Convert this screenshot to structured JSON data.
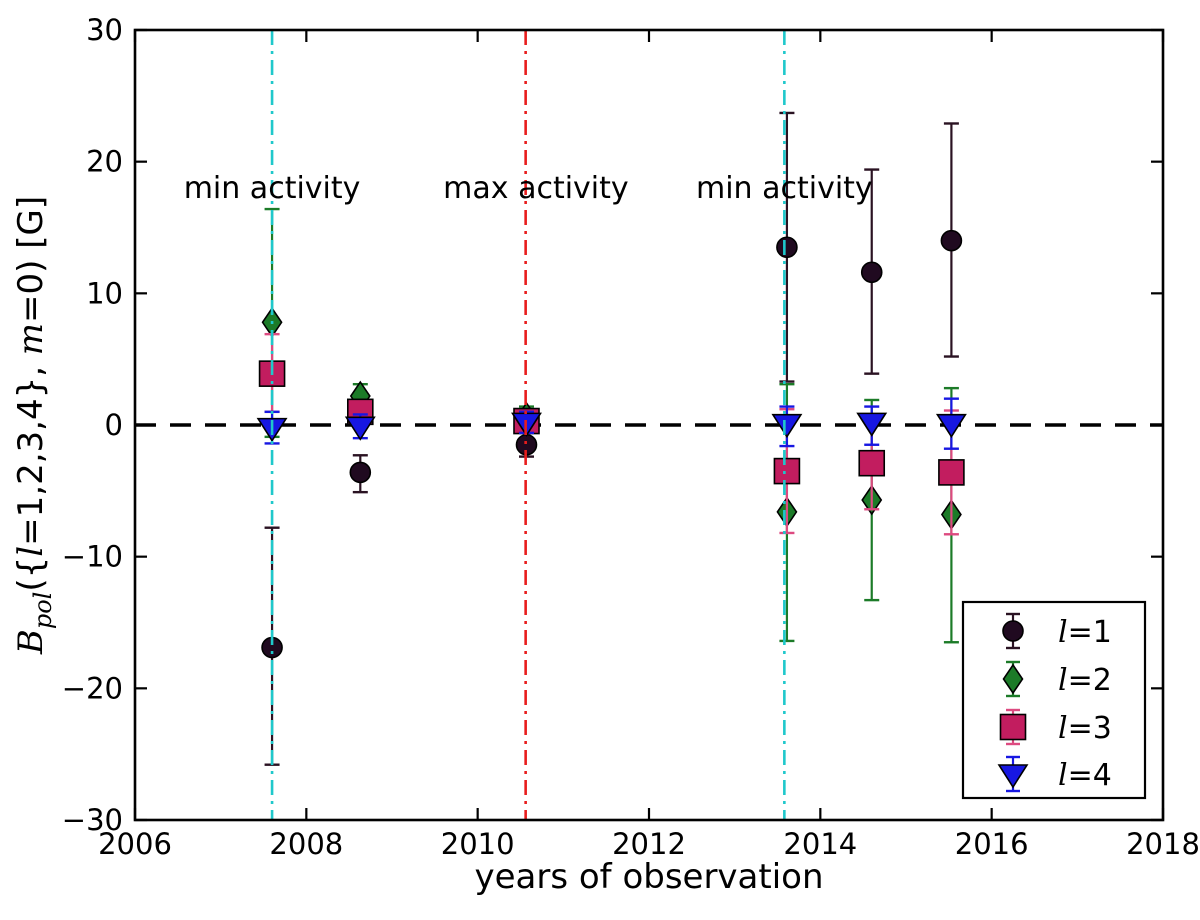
{
  "chart_data": {
    "type": "scatter",
    "title": "",
    "xlabel": "years of observation",
    "ylabel_plain": "B_pol({l=1,2,3,4}, m=0) [G]",
    "ylabel_segments": [
      {
        "t": "B",
        "s": "it"
      },
      {
        "t": "pol",
        "s": "sub"
      },
      {
        "t": "({",
        "s": "r"
      },
      {
        "t": "l",
        "s": "it"
      },
      {
        "t": "=1,2,3,4},  ",
        "s": "r"
      },
      {
        "t": "m",
        "s": "it"
      },
      {
        "t": "=0) [G]",
        "s": "r"
      }
    ],
    "xlim": [
      2006,
      2018
    ],
    "ylim": [
      -30,
      30
    ],
    "xticks": [
      2006,
      2008,
      2010,
      2012,
      2014,
      2016,
      2018
    ],
    "yticks": [
      -30,
      -20,
      -10,
      0,
      10,
      20,
      30
    ],
    "grid": false,
    "legend_position": "lower right",
    "hline": {
      "y": 0,
      "style": "dashed",
      "color": "#000000"
    },
    "vlines": [
      {
        "x": 2007.6,
        "kind": "min activity",
        "color": "#1fc8cb",
        "style": "dash-dot"
      },
      {
        "x": 2010.56,
        "kind": "max activity",
        "color": "#e81d1d",
        "style": "dash-dot"
      },
      {
        "x": 2013.58,
        "kind": "min activity",
        "color": "#1fc8cb",
        "style": "dash-dot"
      }
    ],
    "annotations": [
      {
        "text": "min activity",
        "x": 2007.6,
        "y": 18.0
      },
      {
        "text": "max activity",
        "x": 2010.68,
        "y": 18.0
      },
      {
        "text": "min activity",
        "x": 2013.58,
        "y": 18.0
      }
    ],
    "legend": {
      "entries": [
        {
          "math": "l",
          "rest": "=1",
          "series": "l1"
        },
        {
          "math": "l",
          "rest": "=2",
          "series": "l2"
        },
        {
          "math": "l",
          "rest": "=3",
          "series": "l3"
        },
        {
          "math": "l",
          "rest": "=4",
          "series": "l4"
        }
      ]
    },
    "series": [
      {
        "id": "l1",
        "name": "l=1",
        "marker": "circle",
        "color": "#200a20",
        "err_color": "#2a1222",
        "points": [
          {
            "x": 2007.6,
            "y": -16.9,
            "lo": -25.8,
            "hi": -7.8
          },
          {
            "x": 2008.63,
            "y": -3.6,
            "lo": -5.1,
            "hi": -2.3
          },
          {
            "x": 2010.57,
            "y": -1.5,
            "lo": -2.4,
            "hi": -0.5
          },
          {
            "x": 2013.61,
            "y": 13.5,
            "lo": 3.3,
            "hi": 23.7
          },
          {
            "x": 2014.6,
            "y": 11.6,
            "lo": 3.9,
            "hi": 19.4
          },
          {
            "x": 2015.53,
            "y": 14.0,
            "lo": 5.2,
            "hi": 22.9
          }
        ]
      },
      {
        "id": "l2",
        "name": "l=2",
        "marker": "diamond",
        "color": "#1c7b28",
        "err_color": "#1c7b28",
        "points": [
          {
            "x": 2007.6,
            "y": 7.8,
            "lo": -0.9,
            "hi": 16.4
          },
          {
            "x": 2008.63,
            "y": 2.2,
            "lo": 1.1,
            "hi": 3.1
          },
          {
            "x": 2010.57,
            "y": 0.6,
            "lo": -0.4,
            "hi": 1.4
          },
          {
            "x": 2013.61,
            "y": -6.6,
            "lo": -16.4,
            "hi": 3.1
          },
          {
            "x": 2014.6,
            "y": -5.7,
            "lo": -13.3,
            "hi": 1.9
          },
          {
            "x": 2015.53,
            "y": -6.8,
            "lo": -16.5,
            "hi": 2.8
          }
        ]
      },
      {
        "id": "l3",
        "name": "l=3",
        "marker": "square",
        "color": "#c21d5f",
        "err_color": "#dd4a80",
        "points": [
          {
            "x": 2007.6,
            "y": 3.9,
            "lo": 1.0,
            "hi": 6.9
          },
          {
            "x": 2008.63,
            "y": 1.0,
            "lo": 0.2,
            "hi": 1.9
          },
          {
            "x": 2010.57,
            "y": 0.3,
            "lo": -0.5,
            "hi": 1.2
          },
          {
            "x": 2013.61,
            "y": -3.5,
            "lo": -8.2,
            "hi": 1.2
          },
          {
            "x": 2014.6,
            "y": -2.9,
            "lo": -6.4,
            "hi": 0.6
          },
          {
            "x": 2015.53,
            "y": -3.6,
            "lo": -8.3,
            "hi": 1.1
          }
        ]
      },
      {
        "id": "l4",
        "name": "l=4",
        "marker": "triangle-down",
        "color": "#1717e2",
        "err_color": "#1717e2",
        "points": [
          {
            "x": 2007.6,
            "y": -0.2,
            "lo": -1.4,
            "hi": 1.0
          },
          {
            "x": 2008.63,
            "y": -0.1,
            "lo": -1.0,
            "hi": 0.8
          },
          {
            "x": 2010.57,
            "y": 0.2,
            "lo": -0.6,
            "hi": 1.0
          },
          {
            "x": 2013.61,
            "y": 0.1,
            "lo": -1.6,
            "hi": 1.4
          },
          {
            "x": 2014.6,
            "y": 0.2,
            "lo": -1.5,
            "hi": 1.4
          },
          {
            "x": 2015.53,
            "y": 0.1,
            "lo": -1.8,
            "hi": 2.0
          }
        ]
      }
    ]
  }
}
